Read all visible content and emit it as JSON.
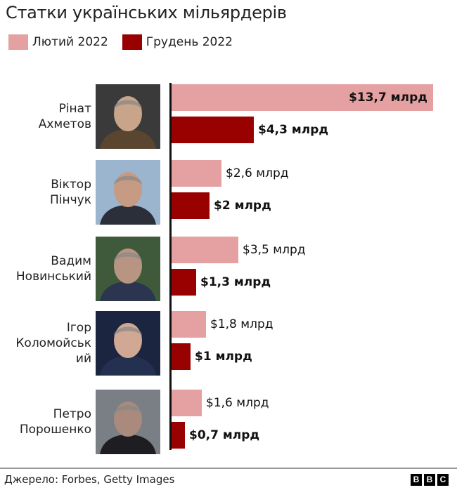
{
  "title": "Статки українських мільярдерів",
  "legend": [
    {
      "label": "Лютий 2022",
      "color": "#e5a1a2"
    },
    {
      "label": "Грудень 2022",
      "color": "#990000"
    }
  ],
  "people": [
    {
      "name_line1": "Рінат",
      "name_line2": "Ахметов",
      "name_line3": "",
      "feb": 13.7,
      "dec": 4.3,
      "feb_label": "$13,7 млрд",
      "dec_label": "$4,3 млрд",
      "photo_colors": [
        "#3a3a3a",
        "#c8a48a",
        "#5a4530"
      ]
    },
    {
      "name_line1": "Віктор",
      "name_line2": "Пінчук",
      "name_line3": "",
      "feb": 2.6,
      "dec": 2.0,
      "feb_label": "$2,6 млрд",
      "dec_label": "$2 млрд",
      "photo_colors": [
        "#9bb5cf",
        "#c79a84",
        "#2b2f3a"
      ]
    },
    {
      "name_line1": "Вадим",
      "name_line2": "Новинський",
      "name_line3": "",
      "feb": 3.5,
      "dec": 1.3,
      "feb_label": "$3,5 млрд",
      "dec_label": "$1,3 млрд",
      "photo_colors": [
        "#3f5a3a",
        "#b89482",
        "#2c3550"
      ]
    },
    {
      "name_line1": "Ігор",
      "name_line2": "Коломойськ",
      "name_line3": "ий",
      "feb": 1.8,
      "dec": 1.0,
      "feb_label": "$1,8 млрд",
      "dec_label": "$1 млрд",
      "photo_colors": [
        "#1c2540",
        "#d0a894",
        "#243050"
      ]
    },
    {
      "name_line1": "Петро",
      "name_line2": "Порошенко",
      "name_line3": "",
      "feb": 1.6,
      "dec": 0.7,
      "feb_label": "$1,6 млрд",
      "dec_label": "$0,7 млрд",
      "photo_colors": [
        "#7a7f85",
        "#a98a7c",
        "#1e1e22"
      ]
    }
  ],
  "footer": {
    "source": "Джерело: Forbes, Getty Images",
    "logo": [
      "B",
      "B",
      "C"
    ]
  },
  "chart_data": {
    "type": "bar",
    "orientation": "horizontal",
    "title": "Статки українських мільярдерів",
    "categories": [
      "Рінат Ахметов",
      "Віктор Пінчук",
      "Вадим Новинський",
      "Ігор Коломойський",
      "Петро Порошенко"
    ],
    "series": [
      {
        "name": "Лютий 2022",
        "color": "#e5a1a2",
        "values": [
          13.7,
          2.6,
          3.5,
          1.8,
          1.6
        ]
      },
      {
        "name": "Грудень 2022",
        "color": "#990000",
        "values": [
          4.3,
          2.0,
          1.3,
          1.0,
          0.7
        ]
      }
    ],
    "value_labels": {
      "Лютий 2022": [
        "$13,7 млрд",
        "$2,6 млрд",
        "$3,5 млрд",
        "$1,8 млрд",
        "$1,6 млрд"
      ],
      "Грудень 2022": [
        "$4,3 млрд",
        "$2 млрд",
        "$1,3 млрд",
        "$1 млрд",
        "$0,7 млрд"
      ]
    },
    "unit": "млрд $",
    "xlabel": "",
    "ylabel": "",
    "grid": false,
    "legend_position": "top-left",
    "source": "Джерело: Forbes, Getty Images"
  }
}
